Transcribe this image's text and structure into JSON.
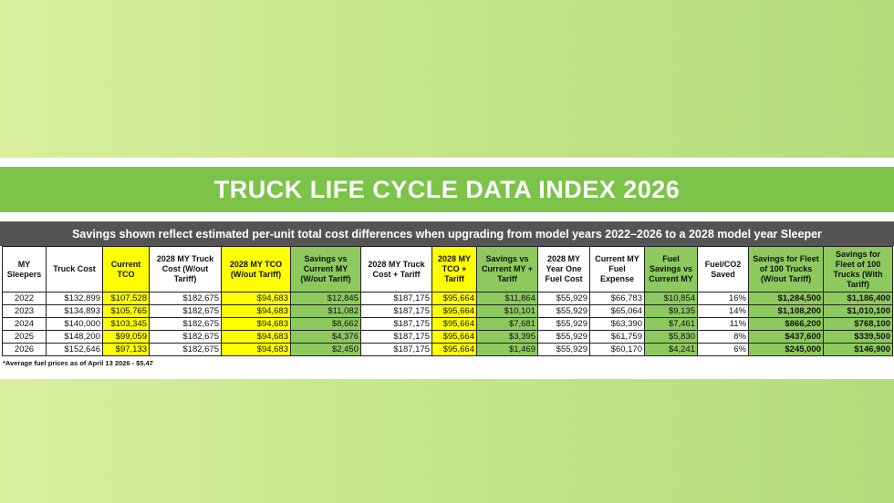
{
  "title": "TRUCK LIFE CYCLE DATA INDEX 2026",
  "subtitle": "Savings shown reflect estimated per-unit total cost differences when upgrading from model years 2022–2026 to a 2028 model year Sleeper",
  "colors": {
    "title_bar": "#7cc34a",
    "subtitle_bar": "#545454",
    "highlight_yellow": "#ffff00",
    "highlight_green": "#8dc95d"
  },
  "table": {
    "headers": [
      "MY Sleepers",
      "Truck Cost",
      "Current TCO",
      "2028 MY Truck Cost (W/out Tariff)",
      "2028 MY TCO (W/out Tariff)",
      "Savings vs Current MY (W/out Tariff)",
      "2028 MY Truck Cost + Tariff",
      "2028 MY TCO + Tariff",
      "Savings vs Current MY + Tariff",
      "2028 MY Year One Fuel Cost",
      "Current MY Fuel Expense",
      "Fuel Savings vs Current MY",
      "Fuel/CO2 Saved",
      "Savings for Fleet of 100 Trucks (W/out Tariff)",
      "Savings for Fleet of 100 Trucks (With Tariff)"
    ],
    "rows": [
      [
        "2022",
        "$132,899",
        "$107,528",
        "$182,675",
        "$94,683",
        "$12,845",
        "$187,175",
        "$95,664",
        "$11,864",
        "$55,929",
        "$66,783",
        "$10,854",
        "16%",
        "$1,284,500",
        "$1,186,400"
      ],
      [
        "2023",
        "$134,893",
        "$105,765",
        "$182,675",
        "$94,683",
        "$11,082",
        "$187,175",
        "$95,664",
        "$10,101",
        "$55,929",
        "$65,064",
        "$9,135",
        "14%",
        "$1,108,200",
        "$1,010,100"
      ],
      [
        "2024",
        "$140,000",
        "$103,345",
        "$182,675",
        "$94,683",
        "$8,662",
        "$187,175",
        "$95,664",
        "$7,681",
        "$55,929",
        "$63,390",
        "$7,461",
        "11%",
        "$866,200",
        "$768,100"
      ],
      [
        "2025",
        "$148,200",
        "$99,059",
        "$182,675",
        "$94,683",
        "$4,376",
        "$187,175",
        "$95,664",
        "$3,395",
        "$55,929",
        "$61,759",
        "$5,830",
        "8%",
        "$437,600",
        "$339,500"
      ],
      [
        "2026",
        "$152,646",
        "$97,133",
        "$182,675",
        "$94,683",
        "$2,450",
        "$187,175",
        "$95,664",
        "$1,469",
        "$55,929",
        "$60,170",
        "$4,241",
        "6%",
        "$245,000",
        "$146,900"
      ]
    ]
  },
  "footnote": "*Average fuel prices as of April 13 2026 - $5.47"
}
